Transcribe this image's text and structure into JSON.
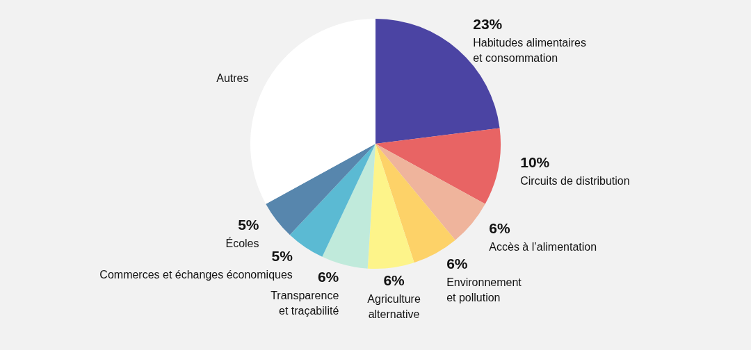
{
  "chart_data": {
    "type": "pie",
    "categories": [
      "Habitudes alimentaires\net consommation",
      "Circuits de distribution",
      "Accès à l’alimentation",
      "Environnement\net pollution",
      "Agriculture\nalternative",
      "Transparence\net traçabilité",
      "Commerces et échanges économiques",
      "Écoles",
      "Autres"
    ],
    "values": [
      23,
      10,
      6,
      6,
      6,
      6,
      5,
      5,
      33
    ],
    "value_labels": [
      "23%",
      "10%",
      "6%",
      "6%",
      "6%",
      "6%",
      "5%",
      "5%",
      null
    ],
    "colors": [
      "#4b44a3",
      "#e86464",
      "#efb49c",
      "#fdd268",
      "#fdf48a",
      "#c0eadb",
      "#5bbad3",
      "#5786ad",
      "#ffffff"
    ]
  }
}
